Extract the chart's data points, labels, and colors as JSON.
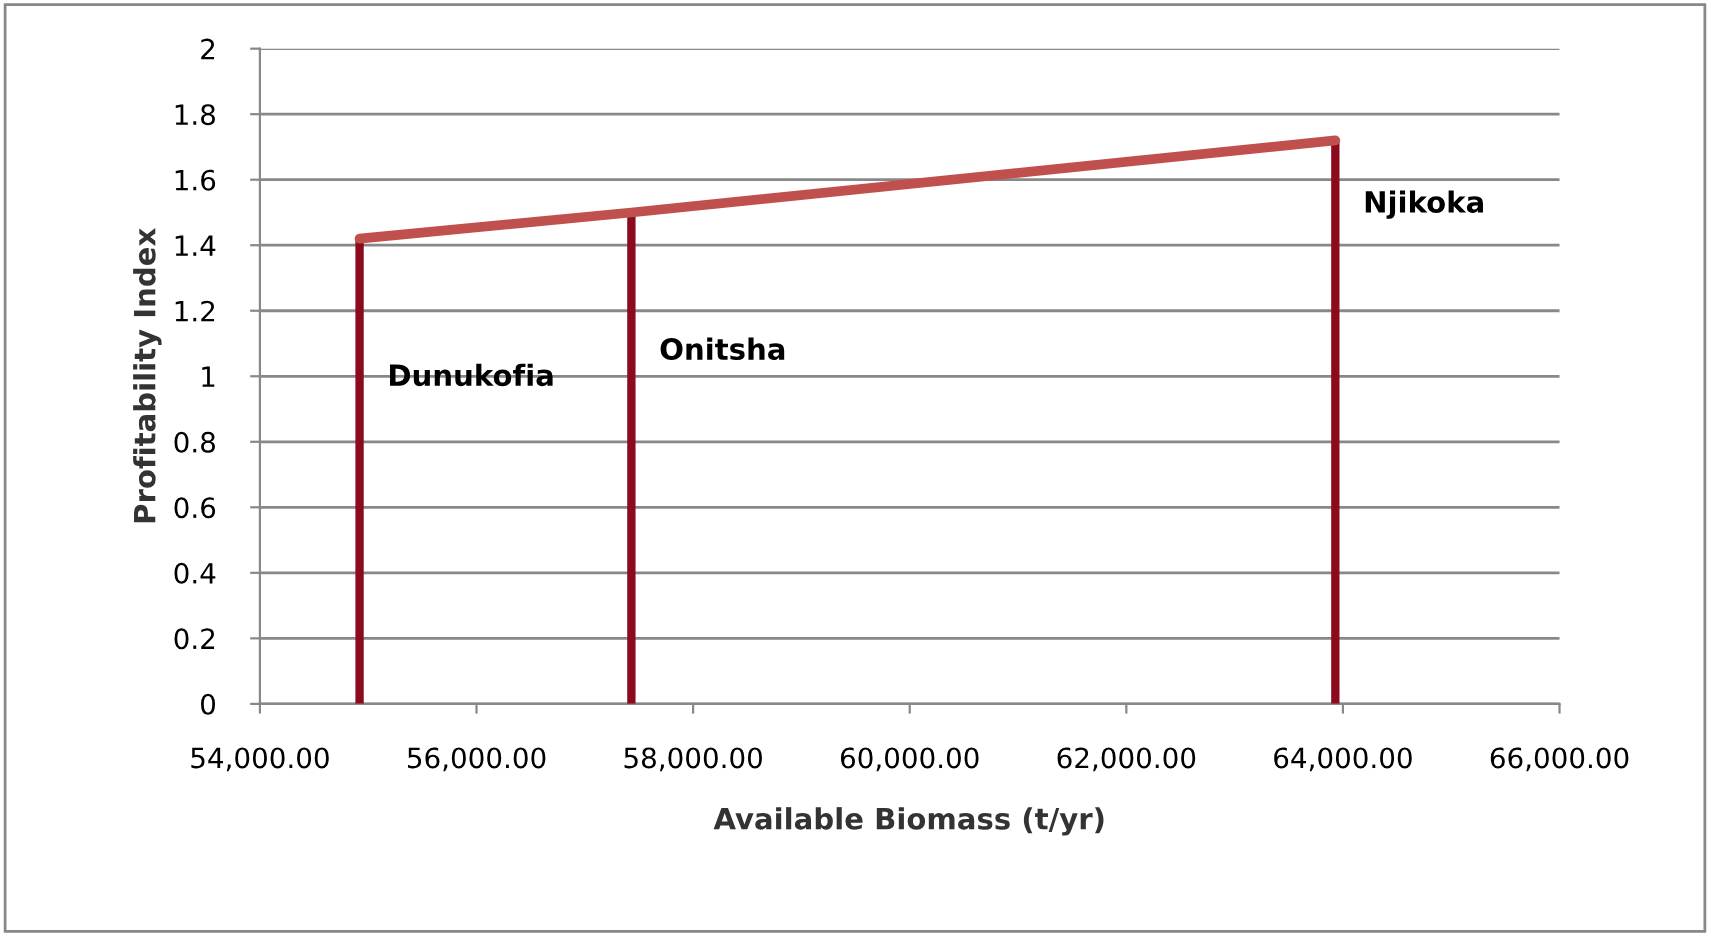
{
  "chart_data": {
    "type": "bar",
    "xlabel": "Available Biomass (t/yr)",
    "ylabel": "Profitability Index",
    "x": [
      54920,
      57430,
      63930
    ],
    "series": [
      {
        "color": "#8b0a1e",
        "values": [
          1.42,
          1.5,
          1.72
        ]
      },
      {
        "type": "line",
        "color": "#c0504d",
        "values": [
          1.42,
          1.5,
          1.72
        ]
      }
    ],
    "xlim": [
      54000,
      66000
    ],
    "xticks": [
      {
        "value": 54000,
        "label": "54,000.00"
      },
      {
        "value": 56000,
        "label": "56,000.00"
      },
      {
        "value": 58000,
        "label": "58,000.00"
      },
      {
        "value": 60000,
        "label": "60,000.00"
      },
      {
        "value": 62000,
        "label": "62,000.00"
      },
      {
        "value": 64000,
        "label": "64,000.00"
      },
      {
        "value": 66000,
        "label": "66,000.00"
      }
    ],
    "ylim": [
      0,
      2
    ],
    "yticks": [
      0,
      0.2,
      0.4,
      0.6,
      0.8,
      1,
      1.2,
      1.4,
      1.6,
      1.8,
      2
    ],
    "grid": "y",
    "annotations": [
      "Dunukofia",
      "Onitsha",
      "Njikoka"
    ]
  }
}
